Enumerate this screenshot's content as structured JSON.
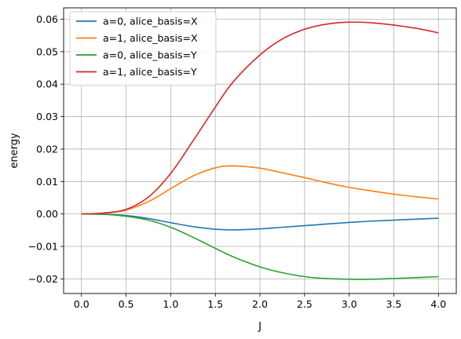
{
  "chart_data": {
    "type": "line",
    "xlabel": "J",
    "ylabel": "energy",
    "xlim": [
      -0.2,
      4.2
    ],
    "ylim": [
      -0.0245,
      0.0635
    ],
    "x_ticks": [
      0.0,
      0.5,
      1.0,
      1.5,
      2.0,
      2.5,
      3.0,
      3.5,
      4.0
    ],
    "x_tick_labels": [
      "0.0",
      "0.5",
      "1.0",
      "1.5",
      "2.0",
      "2.5",
      "3.0",
      "3.5",
      "4.0"
    ],
    "y_ticks": [
      -0.02,
      -0.01,
      0.0,
      0.01,
      0.02,
      0.03,
      0.04,
      0.05,
      0.06
    ],
    "y_tick_labels": [
      "−0.02",
      "−0.01",
      "0.00",
      "0.01",
      "0.02",
      "0.03",
      "0.04",
      "0.05",
      "0.06"
    ],
    "grid": true,
    "legend_position": "top-left",
    "x": [
      0.0,
      0.25,
      0.5,
      0.75,
      1.0,
      1.25,
      1.5,
      1.7,
      2.0,
      2.25,
      2.5,
      2.75,
      3.0,
      3.25,
      3.5,
      3.75,
      4.0
    ],
    "series": [
      {
        "name": "a=0, alice_basis=X",
        "color": "#1f77b4",
        "values": [
          0.0,
          -0.0001,
          -0.0005,
          -0.0014,
          -0.0027,
          -0.0039,
          -0.0047,
          -0.0049,
          -0.0046,
          -0.0041,
          -0.0036,
          -0.0031,
          -0.0026,
          -0.0022,
          -0.0019,
          -0.0016,
          -0.0013
        ]
      },
      {
        "name": "a=1, alice_basis=X",
        "color": "#ff7f0e",
        "values": [
          0.0,
          0.0002,
          0.0012,
          0.0038,
          0.0078,
          0.0117,
          0.0142,
          0.0148,
          0.0141,
          0.0127,
          0.0112,
          0.0096,
          0.0082,
          0.0071,
          0.0061,
          0.0053,
          0.0046
        ]
      },
      {
        "name": "a=0, alice_basis=Y",
        "color": "#2ca02c",
        "values": [
          0.0,
          -0.0001,
          -0.0007,
          -0.0019,
          -0.0041,
          -0.0072,
          -0.0106,
          -0.0132,
          -0.0163,
          -0.0181,
          -0.0193,
          -0.0199,
          -0.0201,
          -0.0201,
          -0.0199,
          -0.0196,
          -0.0193
        ]
      },
      {
        "name": "a=1, alice_basis=Y",
        "color": "#d62728",
        "values": [
          0.0,
          0.0003,
          0.0014,
          0.0052,
          0.0125,
          0.0225,
          0.0329,
          0.0407,
          0.049,
          0.0539,
          0.0569,
          0.0585,
          0.0591,
          0.0589,
          0.0582,
          0.0572,
          0.0558
        ]
      }
    ]
  }
}
